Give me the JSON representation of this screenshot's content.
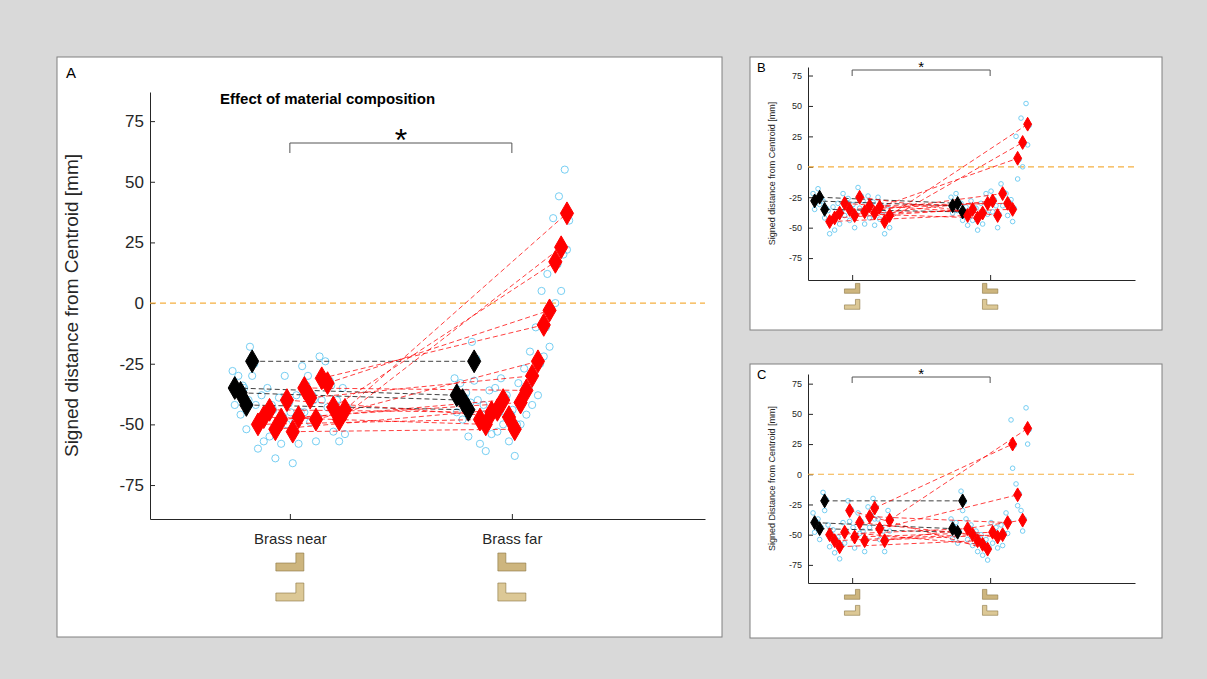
{
  "chart_data": [
    {
      "type": "scatter",
      "panel_label": "A",
      "title": "Effect of material composition",
      "y_label": "Signed distance from Centroid [mm]",
      "categories": [
        "Brass near",
        "Brass far"
      ],
      "ylim": [
        -89,
        87
      ],
      "yticks": [
        -75,
        -50,
        -25,
        0,
        25,
        50,
        75
      ],
      "hline": 0,
      "marker": "diamond",
      "significance": {
        "label": "*",
        "between": [
          0,
          1
        ]
      },
      "series": [
        {
          "color": "#000000",
          "values": [
            -35,
            -38
          ],
          "trials": [
            [
              -28,
              -42,
              -36
            ],
            [
              -31,
              -45,
              -39
            ]
          ]
        },
        {
          "color": "#000000",
          "values": [
            -37,
            -40
          ],
          "trials": [
            [
              -30,
              -46,
              -34
            ],
            [
              -33,
              -48,
              -39
            ]
          ]
        },
        {
          "color": "#000000",
          "values": [
            -42,
            -44
          ],
          "trials": [
            [
              -35,
              -52,
              -40
            ],
            [
              -37,
              -55,
              -41
            ]
          ]
        },
        {
          "color": "#000000",
          "values": [
            -24,
            -24
          ],
          "trials": [
            [
              -18,
              -30,
              -25
            ],
            [
              -16,
              -32,
              -23
            ]
          ]
        },
        {
          "color": "#ff0000",
          "values": [
            -50,
            -48
          ],
          "trials": [
            [
              -42,
              -60,
              -47
            ],
            [
              -40,
              -58,
              -46
            ]
          ]
        },
        {
          "color": "#ff0000",
          "values": [
            -47,
            -50
          ],
          "trials": [
            [
              -38,
              -57,
              -46
            ],
            [
              -42,
              -61,
              -48
            ]
          ]
        },
        {
          "color": "#ff0000",
          "values": [
            -44,
            -45
          ],
          "trials": [
            [
              -35,
              -55,
              -42
            ],
            [
              -36,
              -54,
              -44
            ]
          ]
        },
        {
          "color": "#ff0000",
          "values": [
            -52,
            -44
          ],
          "trials": [
            [
              -44,
              -64,
              -49
            ],
            [
              -35,
              -53,
              -45
            ]
          ]
        },
        {
          "color": "#ff0000",
          "values": [
            -48,
            -40
          ],
          "trials": [
            [
              -39,
              -58,
              -47
            ],
            [
              -31,
              -50,
              -39
            ]
          ]
        },
        {
          "color": "#ff0000",
          "values": [
            -40,
            -47
          ],
          "trials": [
            [
              -30,
              -50,
              -41
            ],
            [
              -38,
              -57,
              -46
            ]
          ]
        },
        {
          "color": "#ff0000",
          "values": [
            -53,
            -52
          ],
          "trials": [
            [
              -45,
              -66,
              -49
            ],
            [
              -44,
              -63,
              -50
            ]
          ]
        },
        {
          "color": "#ff0000",
          "values": [
            -47,
            -41
          ],
          "trials": [
            [
              -38,
              -58,
              -45
            ],
            [
              -33,
              -50,
              -40
            ]
          ]
        },
        {
          "color": "#ff0000",
          "values": [
            -35,
            -36
          ],
          "trials": [
            [
              -26,
              -45,
              -34
            ],
            [
              -27,
              -46,
              -35
            ]
          ]
        },
        {
          "color": "#ff0000",
          "values": [
            -39,
            -30
          ],
          "trials": [
            [
              -30,
              -49,
              -38
            ],
            [
              -20,
              -42,
              -28
            ]
          ]
        },
        {
          "color": "#ff0000",
          "values": [
            -48,
            -24
          ],
          "trials": [
            [
              -40,
              -57,
              -47
            ],
            [
              -10,
              -38,
              -25
            ]
          ]
        },
        {
          "color": "#ff0000",
          "values": [
            -31,
            -9
          ],
          "trials": [
            [
              -22,
              -40,
              -31
            ],
            [
              5,
              -22,
              -10
            ]
          ]
        },
        {
          "color": "#ff0000",
          "values": [
            -33,
            -3
          ],
          "trials": [
            [
              -24,
              -43,
              -32
            ],
            [
              12,
              -18,
              -3
            ]
          ]
        },
        {
          "color": "#ff0000",
          "values": [
            -43,
            17
          ],
          "trials": [
            [
              -34,
              -53,
              -42
            ],
            [
              35,
              0,
              16
            ]
          ]
        },
        {
          "color": "#ff0000",
          "values": [
            -48,
            23
          ],
          "trials": [
            [
              -40,
              -57,
              -47
            ],
            [
              44,
              5,
              20
            ]
          ]
        },
        {
          "color": "#ff0000",
          "values": [
            -44,
            37
          ],
          "trials": [
            [
              -35,
              -54,
              -43
            ],
            [
              55,
              22,
              34
            ]
          ]
        }
      ]
    },
    {
      "type": "scatter",
      "panel_label": "B",
      "y_label": "Signed distance from Centroid [mm]",
      "categories": [
        null,
        null
      ],
      "ylim": [
        -93,
        82
      ],
      "yticks": [
        -75,
        -50,
        -25,
        0,
        25,
        50,
        75
      ],
      "hline": 0,
      "marker": "diamond",
      "significance": {
        "label": "*",
        "between": [
          0,
          1
        ]
      },
      "series": [
        {
          "color": "#000000",
          "values": [
            -28,
            -32
          ],
          "trials": [
            [
              -22,
              -35,
              -27
            ],
            [
              -25,
              -38,
              -31
            ]
          ]
        },
        {
          "color": "#000000",
          "values": [
            -25,
            -30
          ],
          "trials": [
            [
              -18,
              -31,
              -26
            ],
            [
              -22,
              -36,
              -30
            ]
          ]
        },
        {
          "color": "#000000",
          "values": [
            -35,
            -37
          ],
          "trials": [
            [
              -28,
              -42,
              -34
            ],
            [
              -30,
              -44,
              -36
            ]
          ]
        },
        {
          "color": "#ff0000",
          "values": [
            -45,
            -40
          ],
          "trials": [
            [
              -36,
              -55,
              -44
            ],
            [
              -33,
              -48,
              -39
            ]
          ]
        },
        {
          "color": "#ff0000",
          "values": [
            -42,
            -35
          ],
          "trials": [
            [
              -33,
              -52,
              -41
            ],
            [
              -28,
              -44,
              -34
            ]
          ]
        },
        {
          "color": "#ff0000",
          "values": [
            -38,
            -42
          ],
          "trials": [
            [
              -30,
              -47,
              -37
            ],
            [
              -34,
              -52,
              -41
            ]
          ]
        },
        {
          "color": "#ff0000",
          "values": [
            -30,
            -38
          ],
          "trials": [
            [
              -22,
              -40,
              -29
            ],
            [
              -30,
              -47,
              -37
            ]
          ]
        },
        {
          "color": "#ff0000",
          "values": [
            -35,
            -30
          ],
          "trials": [
            [
              -26,
              -44,
              -34
            ],
            [
              -22,
              -39,
              -29
            ]
          ]
        },
        {
          "color": "#ff0000",
          "values": [
            -40,
            -28
          ],
          "trials": [
            [
              -31,
              -50,
              -39
            ],
            [
              -20,
              -37,
              -27
            ]
          ]
        },
        {
          "color": "#ff0000",
          "values": [
            -25,
            -40
          ],
          "trials": [
            [
              -17,
              -34,
              -24
            ],
            [
              -32,
              -50,
              -39
            ]
          ]
        },
        {
          "color": "#ff0000",
          "values": [
            -37,
            -22
          ],
          "trials": [
            [
              -28,
              -47,
              -36
            ],
            [
              -14,
              -32,
              -21
            ]
          ]
        },
        {
          "color": "#ff0000",
          "values": [
            -32,
            -30
          ],
          "trials": [
            [
              -24,
              -42,
              -31
            ],
            [
              -22,
              -40,
              -29
            ]
          ]
        },
        {
          "color": "#ff0000",
          "values": [
            -38,
            -35
          ],
          "trials": [
            [
              -29,
              -48,
              -37
            ],
            [
              -27,
              -45,
              -34
            ]
          ]
        },
        {
          "color": "#ff0000",
          "values": [
            -33,
            7
          ],
          "trials": [
            [
              -25,
              -43,
              -32
            ],
            [
              25,
              -10,
              6
            ]
          ]
        },
        {
          "color": "#ff0000",
          "values": [
            -45,
            20
          ],
          "trials": [
            [
              -37,
              -55,
              -44
            ],
            [
              40,
              0,
              19
            ]
          ]
        },
        {
          "color": "#ff0000",
          "values": [
            -40,
            35
          ],
          "trials": [
            [
              -32,
              -50,
              -39
            ],
            [
              52,
              18,
              34
            ]
          ]
        }
      ]
    },
    {
      "type": "scatter",
      "panel_label": "C",
      "y_label": "Signed Distance from Centroid [mm]",
      "categories": [
        null,
        null
      ],
      "ylim": [
        -90,
        83
      ],
      "yticks": [
        -75,
        -50,
        -25,
        0,
        25,
        50,
        75
      ],
      "hline": 0,
      "marker": "diamond",
      "significance": {
        "label": "*",
        "between": [
          0,
          1
        ]
      },
      "series": [
        {
          "color": "#000000",
          "values": [
            -40,
            -45
          ],
          "trials": [
            [
              -32,
              -48,
              -39
            ],
            [
              -37,
              -53,
              -44
            ]
          ]
        },
        {
          "color": "#000000",
          "values": [
            -45,
            -48
          ],
          "trials": [
            [
              -37,
              -54,
              -44
            ],
            [
              -40,
              -57,
              -47
            ]
          ]
        },
        {
          "color": "#000000",
          "values": [
            -22,
            -22
          ],
          "trials": [
            [
              -15,
              -30,
              -21
            ],
            [
              -14,
              -30,
              -23
            ]
          ]
        },
        {
          "color": "#ff0000",
          "values": [
            -50,
            -45
          ],
          "trials": [
            [
              -42,
              -60,
              -49
            ],
            [
              -37,
              -54,
              -44
            ]
          ]
        },
        {
          "color": "#ff0000",
          "values": [
            -55,
            -50
          ],
          "trials": [
            [
              -46,
              -65,
              -54
            ],
            [
              -42,
              -59,
              -49
            ]
          ]
        },
        {
          "color": "#ff0000",
          "values": [
            -60,
            -55
          ],
          "trials": [
            [
              -52,
              -70,
              -59
            ],
            [
              -47,
              -64,
              -54
            ]
          ]
        },
        {
          "color": "#ff0000",
          "values": [
            -48,
            -58
          ],
          "trials": [
            [
              -40,
              -57,
              -47
            ],
            [
              -50,
              -67,
              -57
            ]
          ]
        },
        {
          "color": "#ff0000",
          "values": [
            -30,
            -62
          ],
          "trials": [
            [
              -22,
              -39,
              -29
            ],
            [
              -54,
              -71,
              -61
            ]
          ]
        },
        {
          "color": "#ff0000",
          "values": [
            -52,
            -48
          ],
          "trials": [
            [
              -44,
              -61,
              -51
            ],
            [
              -40,
              -57,
              -47
            ]
          ]
        },
        {
          "color": "#ff0000",
          "values": [
            -40,
            -52
          ],
          "trials": [
            [
              -32,
              -49,
              -39
            ],
            [
              -44,
              -61,
              -51
            ]
          ]
        },
        {
          "color": "#ff0000",
          "values": [
            -55,
            -50
          ],
          "trials": [
            [
              -47,
              -64,
              -54
            ],
            [
              -42,
              -59,
              -49
            ]
          ]
        },
        {
          "color": "#ff0000",
          "values": [
            -35,
            -40
          ],
          "trials": [
            [
              -27,
              -44,
              -34
            ],
            [
              -32,
              -49,
              -39
            ]
          ]
        },
        {
          "color": "#ff0000",
          "values": [
            -28,
            25
          ],
          "trials": [
            [
              -20,
              -37,
              -27
            ],
            [
              45,
              5,
              24
            ]
          ]
        },
        {
          "color": "#ff0000",
          "values": [
            -45,
            -17
          ],
          "trials": [
            [
              -37,
              -54,
              -44
            ],
            [
              -8,
              -26,
              -16
            ]
          ]
        },
        {
          "color": "#ff0000",
          "values": [
            -55,
            -38
          ],
          "trials": [
            [
              -47,
              -64,
              -54
            ],
            [
              -30,
              -47,
              -37
            ]
          ]
        },
        {
          "color": "#ff0000",
          "values": [
            -38,
            38
          ],
          "trials": [
            [
              -30,
              -47,
              -37
            ],
            [
              55,
              25,
              37
            ]
          ]
        }
      ]
    }
  ]
}
